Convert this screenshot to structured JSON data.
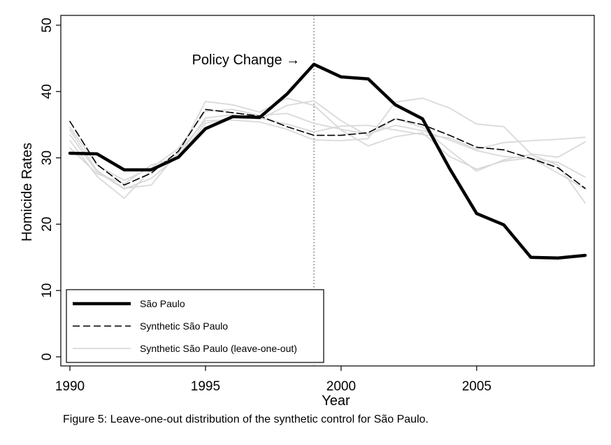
{
  "chart_data": {
    "type": "line",
    "xlabel": "Year",
    "ylabel": "Homicide Rates",
    "xlim": [
      1990,
      2009
    ],
    "ylim": [
      0,
      50
    ],
    "x_ticks": [
      1990,
      1995,
      2000,
      2005
    ],
    "y_ticks": [
      0,
      10,
      20,
      30,
      40,
      50
    ],
    "grid": false,
    "legend_position": "bottom-left",
    "annotation": {
      "text": "Policy Change →",
      "x": 1999
    },
    "x": [
      1990,
      1991,
      1992,
      1993,
      1994,
      1995,
      1996,
      1997,
      1998,
      1999,
      2000,
      2001,
      2002,
      2003,
      2004,
      2005,
      2006,
      2007,
      2008,
      2009
    ],
    "series": [
      {
        "name": "São Paulo",
        "style": "solid-thick",
        "color": "#000000",
        "values": [
          30.7,
          30.6,
          28.2,
          28.2,
          30.1,
          34.4,
          36.2,
          36.1,
          39.6,
          44.1,
          42.2,
          41.9,
          38.0,
          35.9,
          28.4,
          21.6,
          19.9,
          15.0,
          14.9,
          15.3
        ]
      },
      {
        "name": "Synthetic São Paulo",
        "style": "dashed",
        "color": "#000000",
        "values": [
          35.5,
          29.0,
          25.9,
          27.7,
          31.0,
          37.3,
          36.8,
          36.3,
          34.7,
          33.4,
          33.4,
          33.8,
          35.9,
          35.0,
          33.4,
          31.6,
          31.2,
          29.9,
          28.5,
          25.4
        ]
      },
      {
        "name": "Synthetic São Paulo (leave-one-out)",
        "style": "solid-thin",
        "color": "#d9d9d9",
        "values": [
          34.6,
          28.9,
          26.6,
          28.5,
          31.4,
          37.0,
          37.3,
          36.4,
          36.7,
          35.2,
          34.3,
          33.6,
          34.9,
          34.1,
          32.7,
          31.1,
          30.2,
          29.9,
          29.3,
          27.1
        ]
      },
      {
        "name": "Synthetic São Paulo (leave-one-out)",
        "style": "solid-thin",
        "color": "#d9d9d9",
        "values": [
          33.5,
          27.9,
          25.3,
          26.9,
          30.3,
          36.0,
          36.5,
          35.8,
          37.9,
          38.6,
          35.6,
          33.3,
          35.9,
          34.6,
          31.1,
          28.0,
          29.7,
          30.5,
          28.9,
          23.2
        ]
      },
      {
        "name": "Synthetic São Paulo (leave-one-out)",
        "style": "solid-thin",
        "color": "#d9d9d9",
        "values": [
          32.6,
          27.2,
          23.9,
          28.2,
          30.6,
          38.5,
          38.0,
          36.9,
          39.0,
          37.9,
          34.2,
          31.8,
          33.2,
          33.8,
          30.2,
          28.3,
          29.5,
          30.0,
          27.7,
          25.3
        ]
      },
      {
        "name": "Synthetic São Paulo (leave-one-out)",
        "style": "solid-thin",
        "color": "#d9d9d9",
        "values": [
          34.2,
          28.1,
          25.4,
          25.9,
          30.9,
          35.6,
          35.7,
          35.4,
          34.3,
          32.7,
          32.6,
          32.9,
          38.4,
          39.0,
          37.5,
          35.1,
          34.7,
          30.6,
          30.1,
          32.4
        ]
      },
      {
        "name": "Synthetic São Paulo (leave-one-out)",
        "style": "solid-thin",
        "color": "#d9d9d9",
        "values": [
          31.5,
          27.6,
          26.1,
          28.9,
          30.1,
          35.2,
          36.1,
          36.0,
          35.1,
          33.9,
          34.8,
          34.9,
          34.2,
          33.5,
          33.0,
          31.3,
          32.3,
          32.6,
          32.8,
          33.1
        ]
      }
    ],
    "legend": [
      {
        "label": "São Paulo",
        "style": "solid-thick"
      },
      {
        "label": "Synthetic São Paulo",
        "style": "dashed"
      },
      {
        "label": "Synthetic São Paulo (leave-one-out)",
        "style": "solid-thin"
      }
    ]
  },
  "caption": "Figure 5: Leave-one-out distribution of the synthetic control for São Paulo."
}
